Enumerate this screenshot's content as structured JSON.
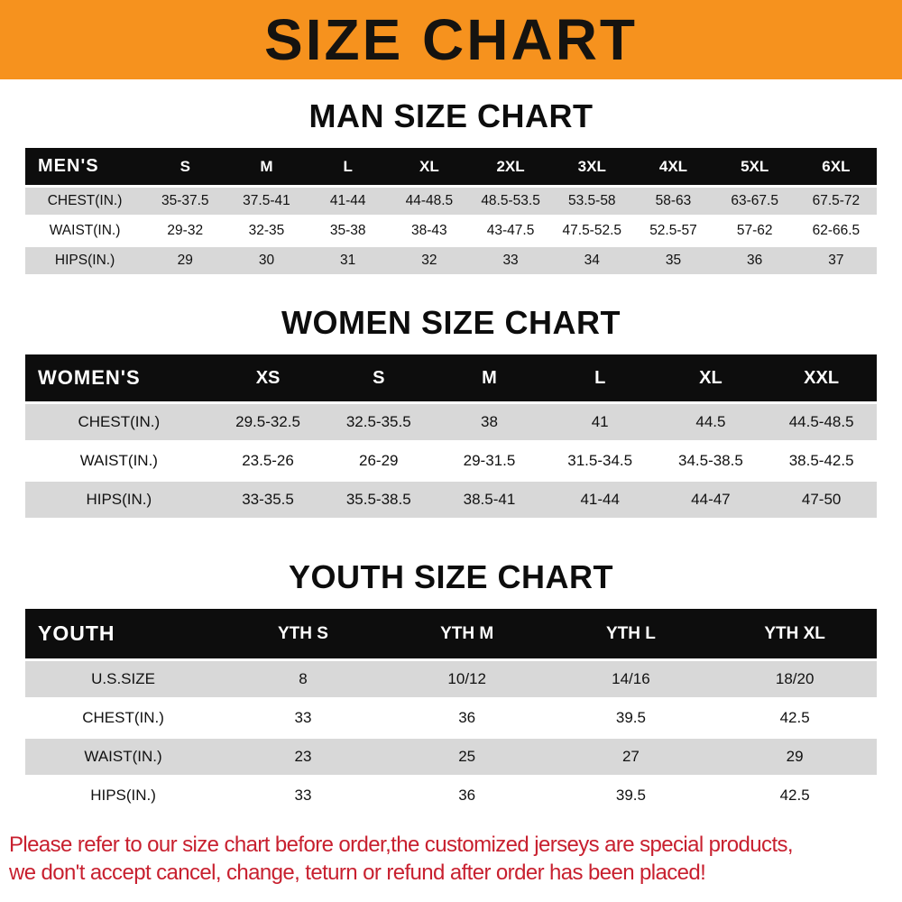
{
  "banner": {
    "title": "SIZE CHART",
    "bg_color": "#f6921e",
    "text_color": "#151310"
  },
  "sections": [
    {
      "id": "men",
      "title": "MAN SIZE CHART",
      "header_label": "MEN'S",
      "columns": [
        "S",
        "M",
        "L",
        "XL",
        "2XL",
        "3XL",
        "4XL",
        "5XL",
        "6XL"
      ],
      "rows": [
        {
          "label": "CHEST(IN.)",
          "values": [
            "35-37.5",
            "37.5-41",
            "41-44",
            "44-48.5",
            "48.5-53.5",
            "53.5-58",
            "58-63",
            "63-67.5",
            "67.5-72"
          ]
        },
        {
          "label": "WAIST(IN.)",
          "values": [
            "29-32",
            "32-35",
            "35-38",
            "38-43",
            "43-47.5",
            "47.5-52.5",
            "52.5-57",
            "57-62",
            "62-66.5"
          ]
        },
        {
          "label": "HIPS(IN.)",
          "values": [
            "29",
            "30",
            "31",
            "32",
            "33",
            "34",
            "35",
            "36",
            "37"
          ]
        }
      ]
    },
    {
      "id": "women",
      "title": "WOMEN SIZE CHART",
      "header_label": "WOMEN'S",
      "columns": [
        "XS",
        "S",
        "M",
        "L",
        "XL",
        "XXL"
      ],
      "rows": [
        {
          "label": "CHEST(IN.)",
          "values": [
            "29.5-32.5",
            "32.5-35.5",
            "38",
            "41",
            "44.5",
            "44.5-48.5"
          ]
        },
        {
          "label": "WAIST(IN.)",
          "values": [
            "23.5-26",
            "26-29",
            "29-31.5",
            "31.5-34.5",
            "34.5-38.5",
            "38.5-42.5"
          ]
        },
        {
          "label": "HIPS(IN.)",
          "values": [
            "33-35.5",
            "35.5-38.5",
            "38.5-41",
            "41-44",
            "44-47",
            "47-50"
          ]
        }
      ]
    },
    {
      "id": "youth",
      "title": "YOUTH SIZE CHART",
      "header_label": "YOUTH",
      "columns": [
        "YTH S",
        "YTH M",
        "YTH L",
        "YTH XL"
      ],
      "rows": [
        {
          "label": "U.S.SIZE",
          "values": [
            "8",
            "10/12",
            "14/16",
            "18/20"
          ]
        },
        {
          "label": "CHEST(IN.)",
          "values": [
            "33",
            "36",
            "39.5",
            "42.5"
          ]
        },
        {
          "label": "WAIST(IN.)",
          "values": [
            "23",
            "25",
            "27",
            "29"
          ]
        },
        {
          "label": "HIPS(IN.)",
          "values": [
            "33",
            "36",
            "39.5",
            "42.5"
          ]
        }
      ]
    }
  ],
  "footer": {
    "line1": "Please refer to our size chart before order,the customized jerseys are special products,",
    "line2": "we don't accept cancel, change, teturn or refund after order has been placed!",
    "color": "#c8202f"
  }
}
